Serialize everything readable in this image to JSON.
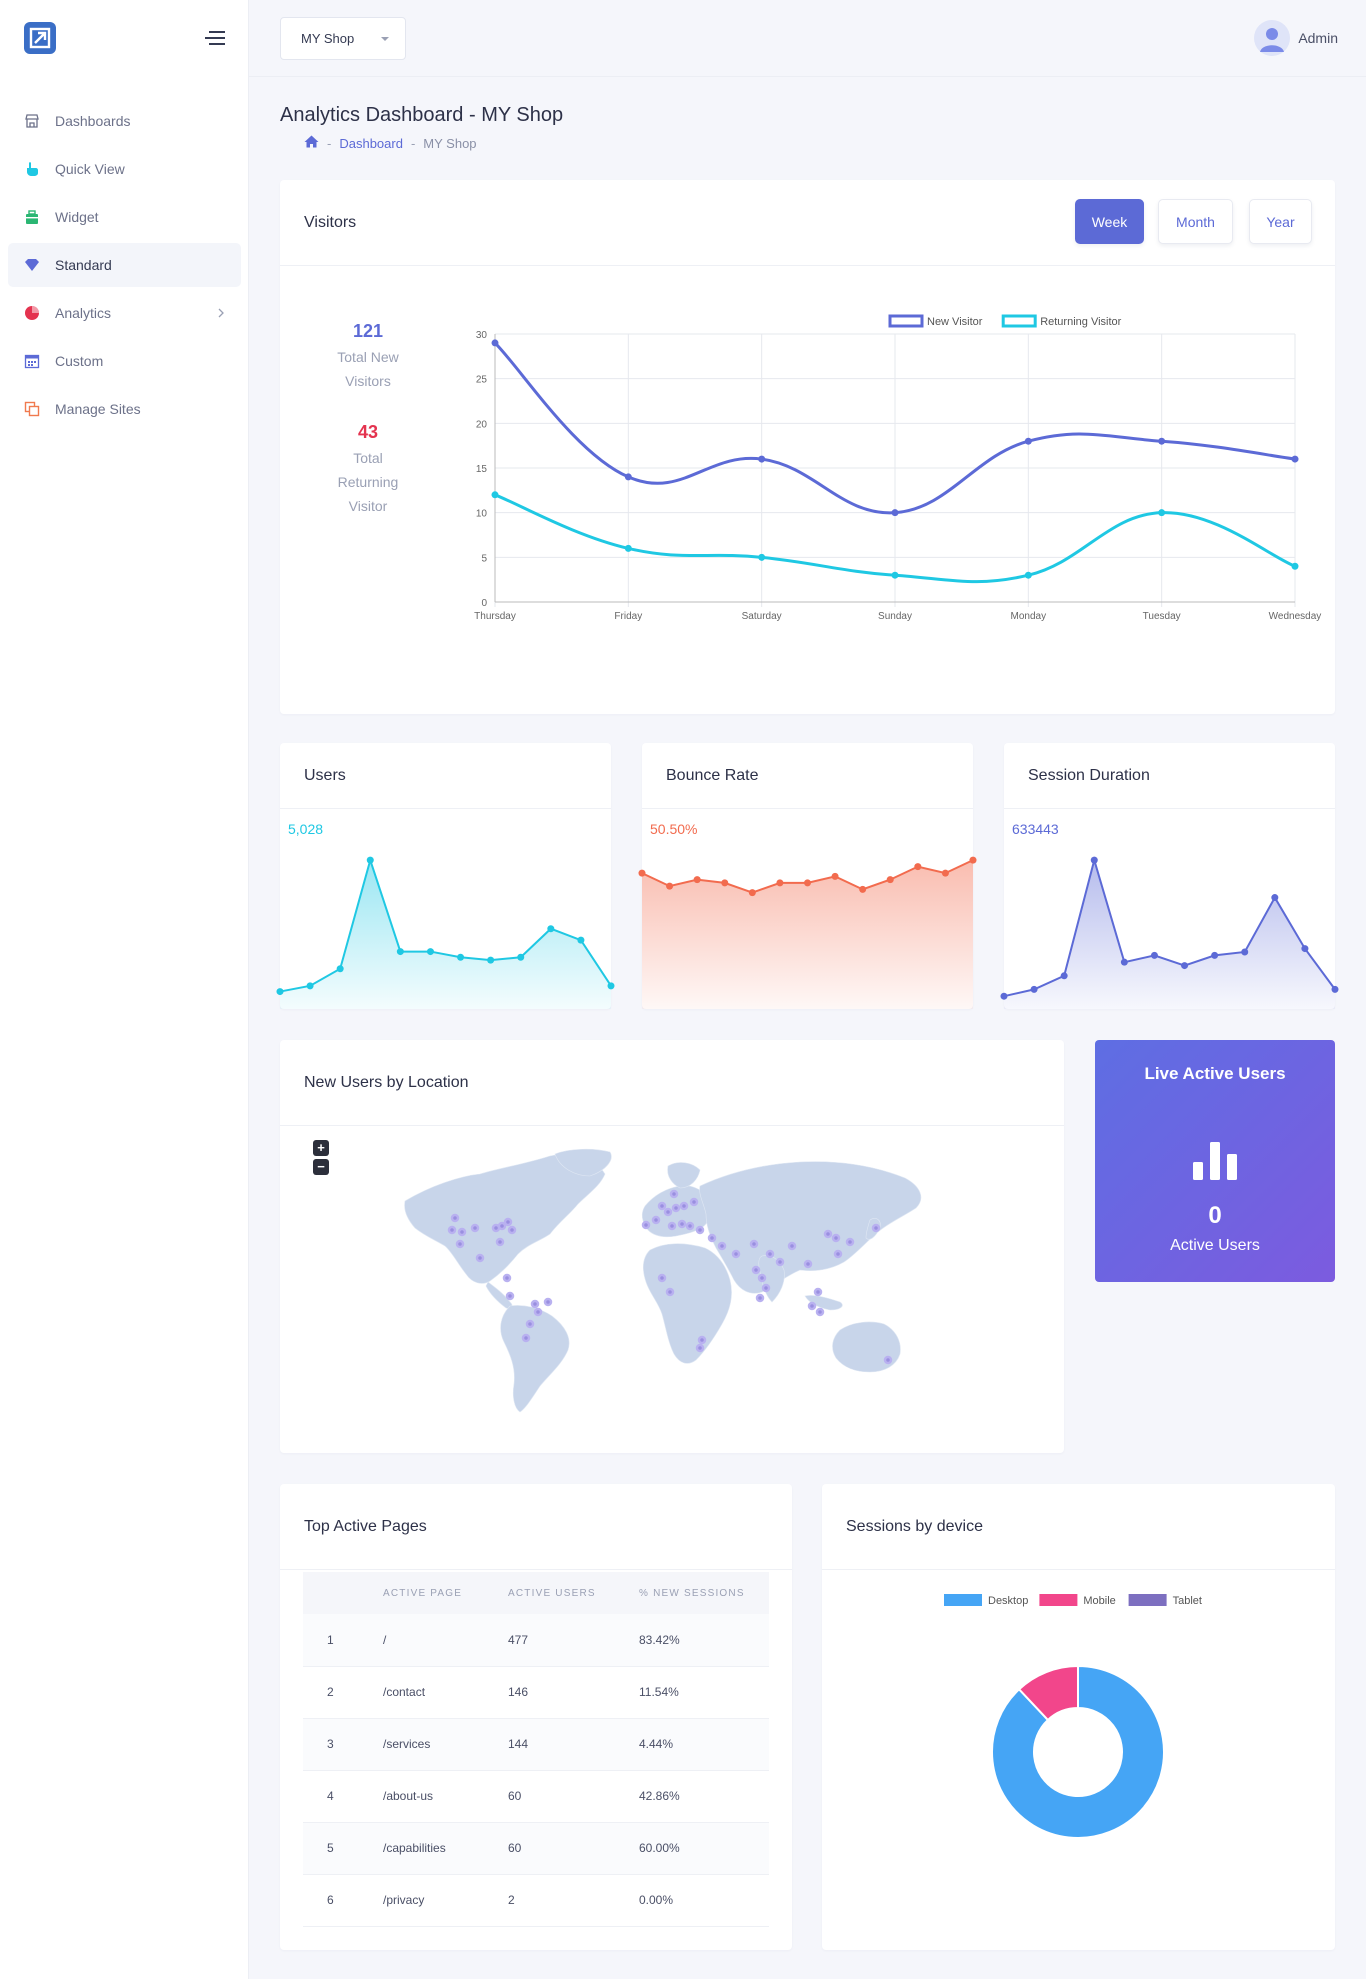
{
  "app": {
    "name": "Analytics Dashboard - MY Shop"
  },
  "sidebar": {
    "items": [
      {
        "label": "Dashboards",
        "icon": "store-icon",
        "color": "#6c7189"
      },
      {
        "label": "Quick View",
        "icon": "pointer-hand-icon",
        "color": "#1fc8e3"
      },
      {
        "label": "Widget",
        "icon": "briefcase-icon",
        "color": "#2bb673"
      },
      {
        "label": "Standard",
        "icon": "diamond-icon",
        "color": "#5c6ad6"
      },
      {
        "label": "Analytics",
        "icon": "pie-chart-icon",
        "color": "#e4334f"
      },
      {
        "label": "Custom",
        "icon": "calendar-icon",
        "color": "#5c6ad6"
      },
      {
        "label": "Manage Sites",
        "icon": "copy-icon",
        "color": "#f07a4e"
      }
    ]
  },
  "topbar": {
    "shop": "MY Shop",
    "user": "Admin"
  },
  "header": {
    "title": "Analytics Dashboard - MY Shop",
    "breadcrumb": {
      "link": "Dashboard",
      "current": "MY Shop"
    }
  },
  "visitors": {
    "title": "Visitors",
    "tabs": [
      "Week",
      "Month",
      "Year"
    ],
    "active_tab": "Week",
    "new_count": "121",
    "new_label": "Total New Visitors",
    "returning_count": "43",
    "returning_label": "Total Returning Visitor"
  },
  "chart_data": [
    {
      "type": "line",
      "categories": [
        "Thursday",
        "Friday",
        "Saturday",
        "Sunday",
        "Monday",
        "Tuesday",
        "Wednesday"
      ],
      "series": [
        {
          "name": "New Visitor",
          "values": [
            29,
            14,
            16,
            10,
            18,
            18,
            16
          ],
          "color": "#5c6ad6"
        },
        {
          "name": "Returning Visitor",
          "values": [
            12,
            6,
            5,
            3,
            3,
            10,
            4
          ],
          "color": "#1fc8e3"
        }
      ],
      "ylim": [
        0,
        30
      ],
      "yticks": [
        0,
        5,
        10,
        15,
        20,
        25,
        30
      ],
      "grid": true,
      "legend": "top-center"
    },
    {
      "type": "area",
      "values": [
        2,
        3,
        6,
        25,
        9,
        9,
        8,
        7.5,
        8,
        13,
        11,
        3
      ],
      "color": "#1fc8e3"
    },
    {
      "type": "area",
      "values": [
        20,
        18,
        19,
        18.5,
        17,
        18.5,
        18.5,
        19.5,
        17.5,
        19,
        21,
        20,
        22
      ],
      "color": "#f26b4e"
    },
    {
      "type": "area",
      "values": [
        2,
        4,
        8,
        42,
        12,
        14,
        11,
        14,
        15,
        31,
        16,
        4
      ],
      "color": "#5c6ad6"
    },
    {
      "type": "pie",
      "donut": true,
      "categories": [
        "Desktop",
        "Mobile",
        "Tablet"
      ],
      "values": [
        88,
        12,
        0
      ],
      "colors": [
        "#45a5f5",
        "#f2468b",
        "#7d6fc0"
      ],
      "legend": "top-center"
    }
  ],
  "mini_cards": [
    {
      "title": "Users",
      "value": "5,028",
      "color": "#1fc8e3"
    },
    {
      "title": "Bounce Rate",
      "value": "50.50%",
      "color": "#f26b4e"
    },
    {
      "title": "Session Duration",
      "value": "633443",
      "color": "#5c6ad6"
    }
  ],
  "map": {
    "title": "New Users by Location",
    "zoom_in": "+",
    "zoom_out": "−"
  },
  "live": {
    "title": "Live Active Users",
    "count": "0",
    "label": "Active Users"
  },
  "pages": {
    "title": "Top Active Pages",
    "headers": [
      "",
      "ACTIVE PAGE",
      "ACTIVE USERS",
      "% NEW SESSIONS"
    ],
    "rows": [
      [
        "1",
        "/",
        "477",
        "83.42%"
      ],
      [
        "2",
        "/contact",
        "146",
        "11.54%"
      ],
      [
        "3",
        "/services",
        "144",
        "4.44%"
      ],
      [
        "4",
        "/about-us",
        "60",
        "42.86%"
      ],
      [
        "5",
        "/capabilities",
        "60",
        "60.00%"
      ],
      [
        "6",
        "/privacy",
        "2",
        "0.00%"
      ]
    ]
  },
  "devices": {
    "title": "Sessions by device"
  }
}
